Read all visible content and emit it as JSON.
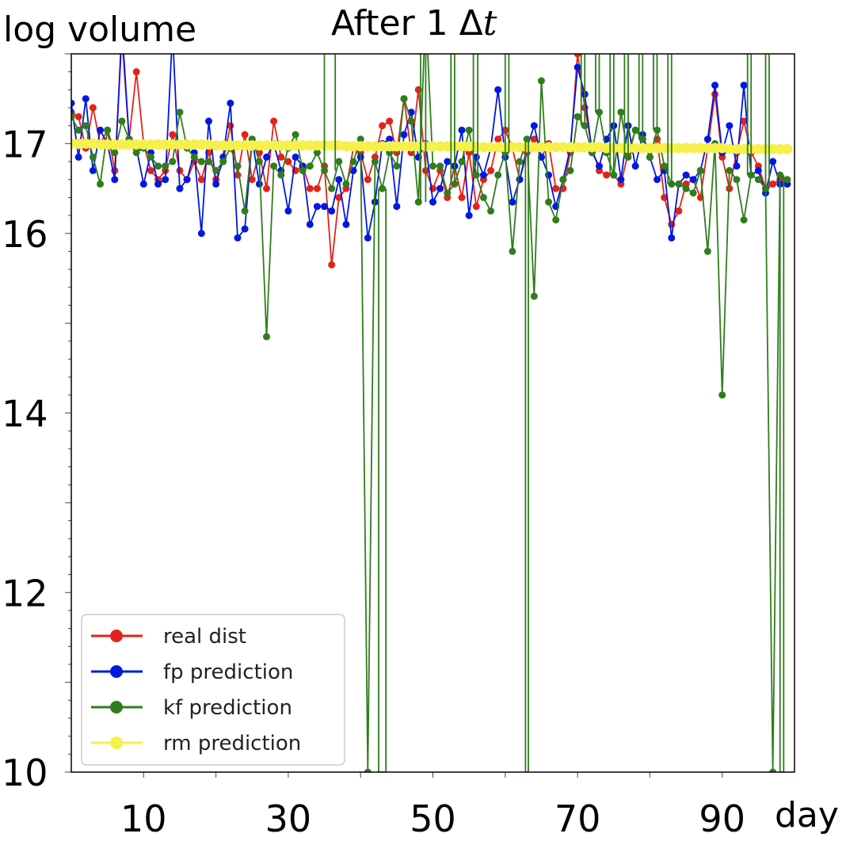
{
  "chart_data": {
    "type": "line",
    "title": "After 1 Δt",
    "title_prefix": "After 1 ",
    "title_symbol": "Δ",
    "title_var": "t",
    "xlabel": "day",
    "ylabel": "log volume",
    "xlim": [
      0,
      100
    ],
    "ylim": [
      10,
      18
    ],
    "xticks": [
      10,
      30,
      50,
      70,
      90
    ],
    "yticks": [
      10,
      12,
      14,
      16,
      17
    ],
    "grid": false,
    "legend_position": "lower-left",
    "x": [
      0,
      1,
      2,
      3,
      4,
      5,
      6,
      7,
      8,
      9,
      10,
      11,
      12,
      13,
      14,
      15,
      16,
      17,
      18,
      19,
      20,
      21,
      22,
      23,
      24,
      25,
      26,
      27,
      28,
      29,
      30,
      31,
      32,
      33,
      34,
      35,
      36,
      37,
      38,
      39,
      40,
      41,
      42,
      43,
      44,
      45,
      46,
      47,
      48,
      49,
      50,
      51,
      52,
      53,
      54,
      55,
      56,
      57,
      58,
      59,
      60,
      61,
      62,
      63,
      64,
      65,
      66,
      67,
      68,
      69,
      70,
      71,
      72,
      73,
      74,
      75,
      76,
      77,
      78,
      79,
      80,
      81,
      82,
      83,
      84,
      85,
      86,
      87,
      88,
      89,
      90,
      91,
      92,
      93,
      94,
      95,
      96,
      97,
      98,
      99
    ],
    "series": [
      {
        "name": "real dist",
        "color": "#e2231a",
        "values": [
          17.35,
          17.3,
          16.95,
          17.4,
          17.0,
          17.15,
          16.7,
          18.2,
          17.05,
          17.8,
          17.0,
          16.7,
          16.6,
          16.7,
          17.1,
          16.7,
          16.6,
          16.8,
          16.6,
          16.9,
          16.6,
          16.8,
          17.2,
          16.65,
          17.1,
          16.6,
          16.9,
          16.5,
          17.25,
          16.85,
          16.8,
          16.7,
          16.75,
          16.5,
          16.5,
          16.75,
          15.65,
          16.4,
          16.5,
          16.95,
          16.9,
          16.6,
          16.85,
          17.2,
          17.25,
          16.9,
          17.5,
          16.9,
          17.6,
          16.7,
          16.5,
          16.7,
          16.4,
          16.75,
          16.4,
          16.9,
          16.3,
          16.6,
          16.7,
          17.05,
          17.15,
          16.95,
          16.6,
          16.9,
          17.05,
          16.85,
          17.0,
          16.5,
          16.5,
          16.9,
          18.0,
          17.4,
          16.95,
          16.7,
          16.65,
          16.65,
          16.55,
          16.9,
          17.15,
          17.05,
          16.85,
          17.05,
          16.4,
          16.1,
          16.25,
          16.55,
          16.6,
          16.4,
          16.95,
          17.55,
          16.85,
          16.5,
          16.9,
          17.25,
          16.9,
          16.75,
          16.5,
          16.55,
          16.6,
          16.55
        ]
      },
      {
        "name": "fp prediction",
        "color": "#0018e0",
        "values": [
          17.45,
          16.85,
          17.5,
          16.7,
          17.15,
          17.0,
          16.6,
          18.3,
          17.05,
          16.95,
          16.55,
          16.9,
          16.55,
          16.6,
          18.25,
          16.5,
          16.6,
          16.9,
          16.0,
          17.25,
          16.55,
          16.85,
          17.45,
          15.95,
          16.05,
          17.05,
          16.55,
          16.85,
          17.0,
          16.7,
          16.25,
          16.85,
          16.75,
          16.1,
          16.3,
          16.3,
          16.25,
          16.6,
          16.1,
          16.7,
          16.85,
          15.95,
          16.35,
          17.0,
          17.05,
          16.3,
          17.1,
          17.35,
          16.85,
          17.0,
          16.35,
          16.5,
          16.8,
          16.75,
          17.15,
          16.2,
          16.85,
          16.65,
          16.95,
          17.6,
          16.85,
          16.35,
          16.6,
          16.95,
          17.2,
          16.85,
          16.65,
          16.3,
          16.6,
          16.95,
          17.85,
          17.55,
          16.9,
          16.75,
          17.05,
          17.2,
          16.6,
          17.2,
          16.75,
          17.1,
          16.85,
          16.6,
          16.7,
          15.95,
          16.55,
          16.65,
          16.6,
          16.7,
          17.05,
          17.65,
          16.9,
          17.2,
          16.75,
          17.65,
          16.65,
          16.7,
          16.45,
          16.8,
          16.55,
          16.55
        ]
      },
      {
        "name": "kf prediction",
        "color": "#2f7d1c",
        "values": [
          17.3,
          17.15,
          17.2,
          16.85,
          16.55,
          17.15,
          16.9,
          17.25,
          17.05,
          16.9,
          16.95,
          16.85,
          16.75,
          16.75,
          16.8,
          17.35,
          16.95,
          16.85,
          16.8,
          16.8,
          16.7,
          16.8,
          16.95,
          16.75,
          16.25,
          17.05,
          16.8,
          14.85,
          16.75,
          16.65,
          16.95,
          17.1,
          16.7,
          16.75,
          16.9,
          16.7,
          16.5,
          16.8,
          16.55,
          16.8,
          17.05,
          10.0,
          16.8,
          16.5,
          16.9,
          16.75,
          17.5,
          17.25,
          16.35,
          18.5,
          16.75,
          16.75,
          16.45,
          16.55,
          16.8,
          17.15,
          16.65,
          16.4,
          16.25,
          16.65,
          16.9,
          15.8,
          16.8,
          17.05,
          15.3,
          17.7,
          16.35,
          16.15,
          16.6,
          16.7,
          17.3,
          17.2,
          16.9,
          17.35,
          16.9,
          16.65,
          17.35,
          16.85,
          17.15,
          17.05,
          16.85,
          17.15,
          16.75,
          16.55,
          16.55,
          16.5,
          16.45,
          16.7,
          15.8,
          17.0,
          14.2,
          16.7,
          16.6,
          16.15,
          16.65,
          16.6,
          16.5,
          10.0,
          16.65,
          16.6
        ]
      },
      {
        "name": "rm prediction",
        "color": "#f6f04a",
        "values": [
          17.0,
          17.0,
          17.0,
          17.0,
          16.99,
          16.99,
          16.99,
          16.99,
          16.99,
          16.99,
          16.99,
          16.99,
          16.99,
          16.99,
          16.99,
          16.99,
          16.99,
          16.99,
          16.99,
          16.99,
          16.98,
          16.98,
          16.98,
          16.98,
          16.98,
          16.98,
          16.98,
          16.98,
          16.98,
          16.98,
          16.98,
          16.98,
          16.98,
          16.98,
          16.98,
          16.98,
          16.98,
          16.98,
          16.97,
          16.97,
          16.97,
          16.97,
          16.97,
          16.97,
          16.97,
          16.97,
          16.97,
          16.97,
          16.97,
          16.97,
          16.97,
          16.97,
          16.97,
          16.97,
          16.97,
          16.97,
          16.96,
          16.96,
          16.96,
          16.96,
          16.96,
          16.96,
          16.96,
          16.96,
          16.96,
          16.96,
          16.96,
          16.96,
          16.96,
          16.96,
          16.96,
          16.96,
          16.96,
          16.96,
          16.95,
          16.95,
          16.95,
          16.95,
          16.95,
          16.95,
          16.95,
          16.95,
          16.95,
          16.95,
          16.95,
          16.95,
          16.95,
          16.95,
          16.95,
          16.95,
          16.95,
          16.94,
          16.94,
          16.94,
          16.94,
          16.94,
          16.94,
          16.94,
          16.94,
          16.94
        ]
      }
    ],
    "spikes": [
      {
        "series": "kf prediction",
        "x_from": 35.0,
        "x_to": 36.5,
        "y": 18.5
      },
      {
        "series": "kf prediction",
        "x_from": 42.5,
        "x_to": 43.5,
        "y": 10.0
      },
      {
        "series": "kf prediction",
        "x_from": 48.3,
        "x_to": 49.0,
        "y": 18.5
      },
      {
        "series": "kf prediction",
        "x_from": 52.5,
        "x_to": 53.0,
        "y": 18.5
      },
      {
        "series": "kf prediction",
        "x_from": 55.6,
        "x_to": 56.2,
        "y": 18.5
      },
      {
        "series": "kf prediction",
        "x_from": 60.0,
        "x_to": 60.5,
        "y": 18.5
      },
      {
        "series": "kf prediction",
        "x_from": 62.8,
        "x_to": 63.2,
        "y": 10.0
      },
      {
        "series": "kf prediction",
        "x_from": 70.5,
        "x_to": 71.0,
        "y": 18.5
      },
      {
        "series": "kf prediction",
        "x_from": 72.5,
        "x_to": 73.0,
        "y": 18.5
      },
      {
        "series": "kf prediction",
        "x_from": 74.5,
        "x_to": 75.0,
        "y": 18.5
      },
      {
        "series": "kf prediction",
        "x_from": 76.5,
        "x_to": 77.0,
        "y": 18.5
      },
      {
        "series": "kf prediction",
        "x_from": 78.5,
        "x_to": 79.0,
        "y": 18.5
      },
      {
        "series": "kf prediction",
        "x_from": 80.5,
        "x_to": 81.0,
        "y": 18.5
      },
      {
        "series": "kf prediction",
        "x_from": 82.5,
        "x_to": 83.0,
        "y": 18.5
      },
      {
        "series": "kf prediction",
        "x_from": 93.5,
        "x_to": 94.0,
        "y": 18.5
      },
      {
        "series": "kf prediction",
        "x_from": 96.0,
        "x_to": 96.5,
        "y": 18.5
      },
      {
        "series": "kf prediction",
        "x_from": 98.0,
        "x_to": 98.5,
        "y": 10.0
      }
    ]
  }
}
